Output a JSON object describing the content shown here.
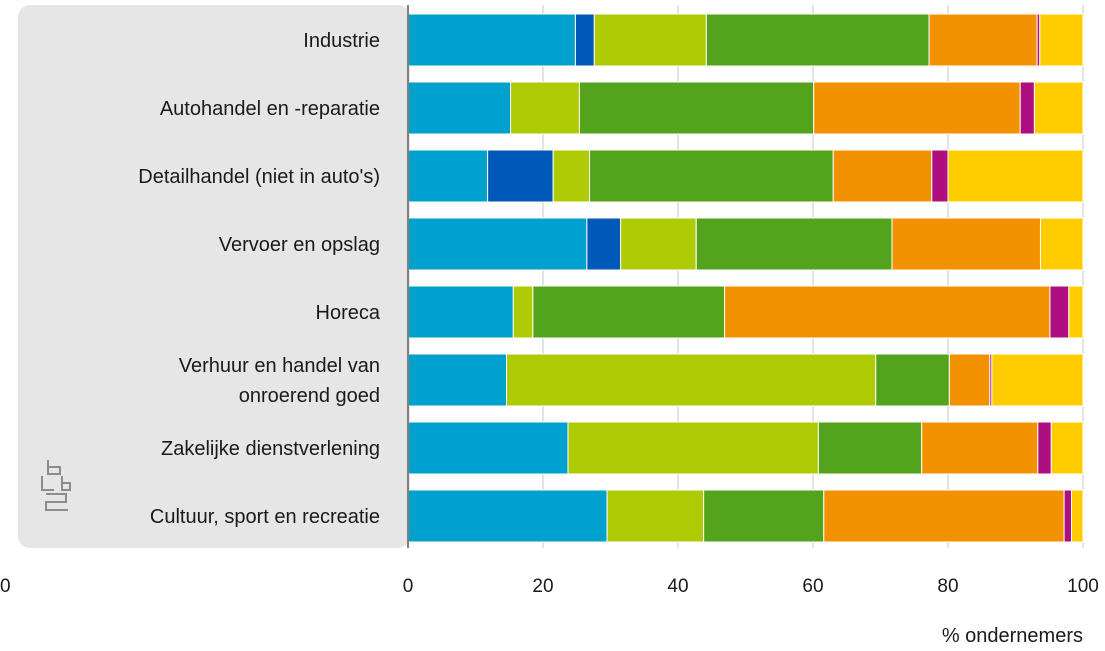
{
  "chart_data": {
    "type": "bar",
    "orientation": "horizontal",
    "stacked": true,
    "categories": [
      [
        "Industrie"
      ],
      [
        "Autohandel en -reparatie"
      ],
      [
        "Detailhandel (niet in auto's)"
      ],
      [
        "Vervoer en opslag"
      ],
      [
        "Horeca"
      ],
      [
        "Verhuur en handel van",
        "onroerend goed"
      ],
      [
        "Zakelijke dienstverlening"
      ],
      [
        "Cultuur, sport en recreatie"
      ]
    ],
    "series": [
      {
        "color": "#00a1cd",
        "values": [
          24.8,
          15.2,
          11.8,
          26.5,
          15.6,
          14.6,
          23.7,
          29.5
        ]
      },
      {
        "color": "#0058b8",
        "values": [
          2.8,
          0,
          9.7,
          5.0,
          0,
          0,
          0,
          0
        ]
      },
      {
        "color": "#afcb05",
        "values": [
          16.6,
          10.2,
          5.4,
          11.2,
          2.9,
          54.7,
          37.1,
          14.3
        ]
      },
      {
        "color": "#53a31d",
        "values": [
          33.0,
          34.7,
          36.1,
          29.0,
          28.4,
          10.9,
          15.3,
          17.8
        ]
      },
      {
        "color": "#f39200",
        "values": [
          16.0,
          30.6,
          14.6,
          22.0,
          48.2,
          6.0,
          17.2,
          35.6
        ]
      },
      {
        "color": "#af0e80",
        "values": [
          0.4,
          2.1,
          2.4,
          0,
          2.8,
          0.3,
          2.0,
          1.1
        ]
      },
      {
        "color": "#ffcc00",
        "values": [
          6.4,
          7.2,
          20.0,
          6.3,
          2.1,
          13.5,
          4.7,
          1.7
        ]
      }
    ],
    "xlim": [
      0,
      100
    ],
    "xticks": [
      0,
      20,
      40,
      60,
      80,
      100
    ],
    "xlabel": "% ondernemers",
    "stray_tick_label": "0",
    "grid": true,
    "legend": "none"
  },
  "logo": {
    "text": "cbs",
    "icon": "cbs-logo-icon"
  },
  "colors": {
    "panel": "#e6e6e6",
    "axis": "#808080",
    "grid": "#c8c8c8"
  }
}
